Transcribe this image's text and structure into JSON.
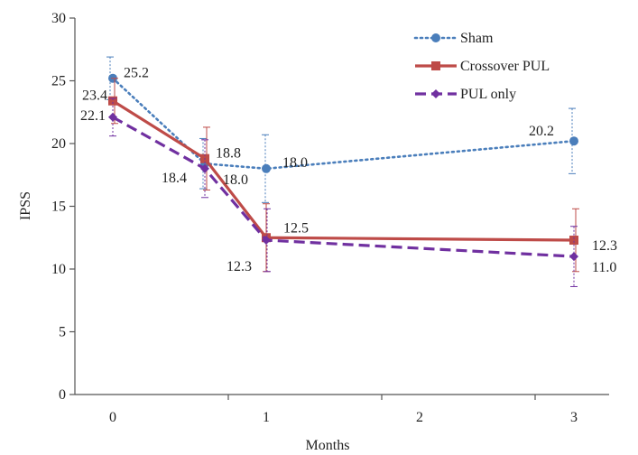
{
  "chart_data": {
    "type": "line",
    "xlabel": "Months",
    "ylabel": "IPSS",
    "x_ticks": [
      {
        "value": 0,
        "label": "0"
      },
      {
        "value": 1,
        "label": "1"
      },
      {
        "value": 2,
        "label": "2"
      },
      {
        "value": 3,
        "label": "3"
      }
    ],
    "ylim": [
      0,
      30
    ],
    "y_ticks": [
      0,
      5,
      10,
      15,
      20,
      25,
      30
    ],
    "grid": false,
    "legend_position": "top-right",
    "series": [
      {
        "name": "Sham",
        "color": "#4A7EBB",
        "line_style": "dotted",
        "marker": "circle",
        "points": [
          {
            "x": 0.0,
            "y": 25.2,
            "err": 1.7,
            "label": "25.2"
          },
          {
            "x": 0.6,
            "y": 18.4,
            "err": 2.0,
            "label": "18.4"
          },
          {
            "x": 1.0,
            "y": 18.0,
            "err": 2.7,
            "label": "18.0"
          },
          {
            "x": 3.0,
            "y": 20.2,
            "err": 2.6,
            "label": "20.2"
          }
        ]
      },
      {
        "name": "Crossover PUL",
        "color": "#BE4B48",
        "line_style": "solid",
        "marker": "square",
        "points": [
          {
            "x": 0.0,
            "y": 23.4,
            "err": 1.8,
            "label": "23.4"
          },
          {
            "x": 0.6,
            "y": 18.8,
            "err": 2.5,
            "label": "18.8"
          },
          {
            "x": 1.0,
            "y": 12.5,
            "err": 2.7,
            "label": "12.5"
          },
          {
            "x": 3.0,
            "y": 12.3,
            "err": 2.5,
            "label": "12.3"
          }
        ]
      },
      {
        "name": "PUL only",
        "color": "#7030A0",
        "line_style": "dashed",
        "marker": "diamond",
        "points": [
          {
            "x": 0.0,
            "y": 22.1,
            "err": 1.5,
            "label": "22.1"
          },
          {
            "x": 0.6,
            "y": 18.0,
            "err": 2.3,
            "label": "18.0"
          },
          {
            "x": 1.0,
            "y": 12.3,
            "err": 2.5,
            "label": "12.3"
          },
          {
            "x": 3.0,
            "y": 11.0,
            "err": 2.4,
            "label": "11.0"
          }
        ]
      }
    ]
  }
}
